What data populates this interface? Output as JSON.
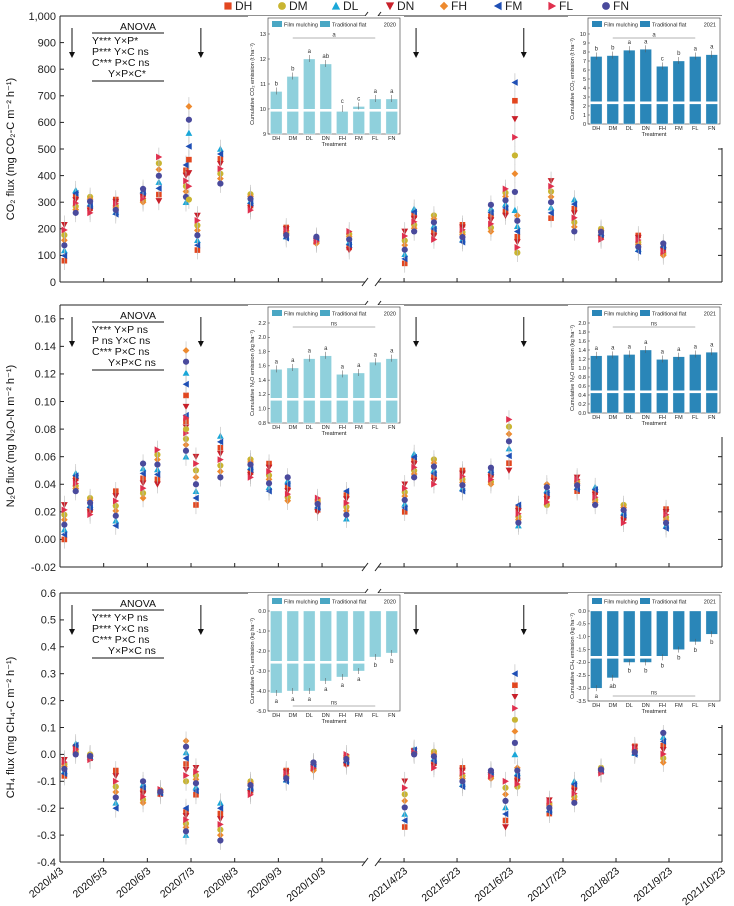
{
  "legend": [
    {
      "label": "DH",
      "color": "#e2461f",
      "marker": "square"
    },
    {
      "label": "DM",
      "color": "#c9b531",
      "marker": "circle"
    },
    {
      "label": "DL",
      "color": "#1aa7d8",
      "marker": "tri-up"
    },
    {
      "label": "DN",
      "color": "#c8202a",
      "marker": "tri-down"
    },
    {
      "label": "FH",
      "color": "#ee8a2e",
      "marker": "diamond"
    },
    {
      "label": "FM",
      "color": "#1f4fb5",
      "marker": "tri-left"
    },
    {
      "label": "FL",
      "color": "#e0304e",
      "marker": "tri-right"
    },
    {
      "label": "FN",
      "color": "#4a4a9c",
      "marker": "hexagon"
    }
  ],
  "x_dates_2020": [
    "2020/4/3",
    "2020/5/3",
    "2020/6/3",
    "2020/7/3",
    "2020/8/3",
    "2020/9/3",
    "2020/10/3"
  ],
  "x_dates_2021": [
    "2021/4/23",
    "2021/5/23",
    "2021/6/23",
    "2021/7/23",
    "2021/8/23",
    "2021/9/23",
    "2021/10/23"
  ],
  "chart_data": [
    {
      "type": "scatter",
      "panel": "CO2",
      "ylabel": "CO₂ flux (mg CO₂-C m⁻² h⁻¹)",
      "ylim": [
        0,
        1000
      ],
      "yticks": [
        "0",
        "100",
        "200",
        "300",
        "400",
        "500",
        "600",
        "700",
        "800",
        "900",
        "1,000"
      ],
      "yvals": [
        0,
        100,
        200,
        300,
        400,
        500,
        600,
        700,
        800,
        900,
        1000
      ],
      "fertilization_arrows": [
        {
          "year": 2020,
          "day": 0
        },
        {
          "year": 2020,
          "day": 90
        },
        {
          "year": 2021,
          "day": 0
        },
        {
          "year": 2021,
          "day": 62
        }
      ],
      "anova": [
        "ANOVA",
        "Y*** Y×P*",
        "P*** Y×C ns",
        "C*** P×C ns",
        "Y×P×C*"
      ],
      "points_2020": [
        {
          "day": 5,
          "min": 80,
          "max": 215
        },
        {
          "day": 10,
          "min": 260,
          "max": 345
        },
        {
          "day": 22,
          "min": 260,
          "max": 320
        },
        {
          "day": 37,
          "min": 255,
          "max": 310
        },
        {
          "day": 58,
          "min": 300,
          "max": 350
        },
        {
          "day": 71,
          "min": 305,
          "max": 470
        },
        {
          "day": 87,
          "min": 300,
          "max": 440
        },
        {
          "day": 91,
          "min": 310,
          "max": 660
        },
        {
          "day": 94,
          "min": 120,
          "max": 250
        },
        {
          "day": 112,
          "min": 370,
          "max": 500
        },
        {
          "day": 135,
          "min": 270,
          "max": 330
        },
        {
          "day": 157,
          "min": 165,
          "max": 205
        },
        {
          "day": 180,
          "min": 145,
          "max": 170
        },
        {
          "day": 200,
          "min": 120,
          "max": 190
        }
      ],
      "points_2021": [
        {
          "day": 2,
          "min": 70,
          "max": 190
        },
        {
          "day": 5,
          "min": 190,
          "max": 275
        },
        {
          "day": 18,
          "min": 160,
          "max": 250
        },
        {
          "day": 32,
          "min": 150,
          "max": 215
        },
        {
          "day": 50,
          "min": 190,
          "max": 290
        },
        {
          "day": 60,
          "min": 250,
          "max": 350
        },
        {
          "day": 63,
          "min": 270,
          "max": 750
        },
        {
          "day": 66,
          "min": 110,
          "max": 250
        },
        {
          "day": 83,
          "min": 240,
          "max": 380
        },
        {
          "day": 98,
          "min": 190,
          "max": 310
        },
        {
          "day": 115,
          "min": 160,
          "max": 200
        },
        {
          "day": 134,
          "min": 115,
          "max": 175
        },
        {
          "day": 150,
          "min": 100,
          "max": 145
        }
      ],
      "insets": [
        {
          "year": "2020",
          "type": "bar",
          "style": "light",
          "ylabel": "Cumulative CO₂ emission (t ha⁻¹)",
          "xlabel": "Treatment",
          "legend": [
            "Film mulching",
            "Traditional flat"
          ],
          "categories": [
            "DH",
            "DM",
            "DL",
            "DN",
            "FH",
            "FM",
            "FL",
            "FN"
          ],
          "values": [
            10.7,
            11.3,
            12.0,
            11.8,
            10.0,
            10.1,
            10.4,
            10.4
          ],
          "ylim": [
            9,
            13
          ],
          "yticks": [
            "9",
            "10",
            "11",
            "12",
            "13"
          ],
          "letters": [
            "b",
            "b",
            "a",
            "ab",
            "c",
            "c",
            "a",
            "a"
          ],
          "group_sig": "a"
        },
        {
          "year": "2021",
          "type": "bar",
          "style": "dark",
          "ylabel": "Cumulative CO₂ emission (t ha⁻¹)",
          "xlabel": "Treatment",
          "legend": [
            "Film mulching",
            "Traditional flat"
          ],
          "categories": [
            "DH",
            "DM",
            "DL",
            "DN",
            "FH",
            "FM",
            "FL",
            "FN"
          ],
          "values": [
            7.5,
            7.6,
            8.2,
            8.3,
            6.4,
            7.0,
            7.5,
            7.7
          ],
          "ylim": [
            0,
            10
          ],
          "yticks": [
            "0",
            "1",
            "2",
            "3",
            "4",
            "5",
            "6",
            "7",
            "8",
            "9",
            "10"
          ],
          "letters": [
            "b",
            "b",
            "a",
            "a",
            "c",
            "b",
            "a",
            "a"
          ],
          "group_sig": "a"
        }
      ]
    },
    {
      "type": "scatter",
      "panel": "N2O",
      "ylabel": "N₂O flux (mg N₂O-N m⁻² h⁻¹)",
      "ylim": [
        -0.02,
        0.17
      ],
      "yticks": [
        "-0.02",
        "0.00",
        "0.02",
        "0.04",
        "0.06",
        "0.08",
        "0.10",
        "0.12",
        "0.14",
        "0.16"
      ],
      "yvals": [
        -0.02,
        0,
        0.02,
        0.04,
        0.06,
        0.08,
        0.1,
        0.12,
        0.14,
        0.16
      ],
      "fertilization_arrows": [
        {
          "year": 2020,
          "day": 0
        },
        {
          "year": 2020,
          "day": 90
        },
        {
          "year": 2021,
          "day": 0
        },
        {
          "year": 2021,
          "day": 62
        }
      ],
      "anova": [
        "ANOVA",
        "Y*** Y×P ns",
        "P ns Y×C ns",
        "C*** P×C ns",
        "Y×P×C ns"
      ],
      "points_2020": [
        {
          "day": 5,
          "min": 0.0,
          "max": 0.025
        },
        {
          "day": 10,
          "min": 0.035,
          "max": 0.048
        },
        {
          "day": 22,
          "min": 0.018,
          "max": 0.03
        },
        {
          "day": 37,
          "min": 0.01,
          "max": 0.035
        },
        {
          "day": 58,
          "min": 0.03,
          "max": 0.055
        },
        {
          "day": 70,
          "min": 0.04,
          "max": 0.065
        },
        {
          "day": 87,
          "min": 0.06,
          "max": 0.09
        },
        {
          "day": 89,
          "min": 0.08,
          "max": 0.137
        },
        {
          "day": 93,
          "min": 0.025,
          "max": 0.06
        },
        {
          "day": 112,
          "min": 0.045,
          "max": 0.075
        },
        {
          "day": 135,
          "min": 0.045,
          "max": 0.058
        },
        {
          "day": 145,
          "min": 0.035,
          "max": 0.055
        },
        {
          "day": 160,
          "min": 0.028,
          "max": 0.045
        },
        {
          "day": 178,
          "min": 0.02,
          "max": 0.03
        },
        {
          "day": 200,
          "min": 0.015,
          "max": 0.035
        }
      ],
      "points_2021": [
        {
          "day": 2,
          "min": 0.02,
          "max": 0.04
        },
        {
          "day": 5,
          "min": 0.045,
          "max": 0.062
        },
        {
          "day": 18,
          "min": 0.04,
          "max": 0.058
        },
        {
          "day": 32,
          "min": 0.035,
          "max": 0.05
        },
        {
          "day": 50,
          "min": 0.04,
          "max": 0.052
        },
        {
          "day": 62,
          "min": 0.05,
          "max": 0.087
        },
        {
          "day": 65,
          "min": 0.01,
          "max": 0.025
        },
        {
          "day": 83,
          "min": 0.025,
          "max": 0.04
        },
        {
          "day": 98,
          "min": 0.035,
          "max": 0.045
        },
        {
          "day": 110,
          "min": 0.025,
          "max": 0.038
        },
        {
          "day": 128,
          "min": 0.012,
          "max": 0.025
        },
        {
          "day": 150,
          "min": 0.008,
          "max": 0.022
        }
      ],
      "insets": [
        {
          "year": "2020",
          "type": "bar",
          "style": "light",
          "ylabel": "Cumulative N₂O emission (kg ha⁻¹)",
          "xlabel": "Treatment",
          "legend": [
            "Film mulching",
            "Traditional flat"
          ],
          "categories": [
            "DH",
            "DM",
            "DL",
            "DN",
            "FH",
            "FM",
            "FL",
            "FN"
          ],
          "values": [
            1.55,
            1.57,
            1.7,
            1.74,
            1.48,
            1.5,
            1.65,
            1.7
          ],
          "ylim": [
            0.8,
            2.2
          ],
          "yticks": [
            "0.8",
            "1.0",
            "1.2",
            "1.4",
            "1.6",
            "1.8",
            "2.0",
            "2.2"
          ],
          "letters": [
            "a",
            "a",
            "a",
            "a",
            "a",
            "a",
            "a",
            "a"
          ],
          "group_sig": "ns"
        },
        {
          "year": "2021",
          "type": "bar",
          "style": "dark",
          "ylabel": "Cumulative N₂O emission (kg ha⁻¹)",
          "xlabel": "Treatment",
          "legend": [
            "Film mulching",
            "Traditional flat"
          ],
          "categories": [
            "DH",
            "DM",
            "DL",
            "DN",
            "FH",
            "FM",
            "FL",
            "FN"
          ],
          "values": [
            1.27,
            1.28,
            1.3,
            1.4,
            1.19,
            1.25,
            1.3,
            1.35
          ],
          "ylim": [
            0,
            2.0
          ],
          "yticks": [
            "0.0",
            "0.2",
            "0.4",
            "0.6",
            "0.8",
            "1.0",
            "1.2",
            "1.4",
            "1.6",
            "1.8",
            "2.0"
          ],
          "letters": [
            "a",
            "a",
            "a",
            "a",
            "a",
            "a",
            "a",
            "a"
          ],
          "group_sig": "ns"
        }
      ]
    },
    {
      "type": "scatter",
      "panel": "CH4",
      "ylabel": "CH₄ flux (mg CH₄-C m⁻² h⁻¹)",
      "ylim": [
        -0.4,
        0.6
      ],
      "yticks": [
        "-0.4",
        "-0.3",
        "-0.2",
        "-0.1",
        "0.0",
        "0.1",
        "0.2",
        "0.3",
        "0.4",
        "0.5",
        "0.6"
      ],
      "yvals": [
        -0.4,
        -0.3,
        -0.2,
        -0.1,
        0,
        0.1,
        0.2,
        0.3,
        0.4,
        0.5,
        0.6
      ],
      "fertilization_arrows": [
        {
          "year": 2020,
          "day": 0
        },
        {
          "year": 2020,
          "day": 90
        },
        {
          "year": 2021,
          "day": 0
        },
        {
          "year": 2021,
          "day": 62
        }
      ],
      "anova": [
        "ANOVA",
        "Y*** Y×P ns",
        "P*** Y×C ns",
        "C*** P×C ns",
        "Y×P×C ns"
      ],
      "points_2020": [
        {
          "day": 5,
          "min": -0.08,
          "max": -0.02
        },
        {
          "day": 10,
          "min": 0.0,
          "max": 0.04
        },
        {
          "day": 22,
          "min": -0.02,
          "max": 0.0
        },
        {
          "day": 37,
          "min": -0.2,
          "max": -0.06
        },
        {
          "day": 58,
          "min": -0.18,
          "max": -0.1
        },
        {
          "day": 72,
          "min": -0.15,
          "max": -0.13
        },
        {
          "day": 87,
          "min": -0.3,
          "max": -0.2
        },
        {
          "day": 89,
          "min": -0.1,
          "max": 0.05
        },
        {
          "day": 93,
          "min": -0.15,
          "max": -0.05
        },
        {
          "day": 112,
          "min": -0.32,
          "max": -0.18
        },
        {
          "day": 135,
          "min": -0.15,
          "max": -0.1
        },
        {
          "day": 157,
          "min": -0.1,
          "max": -0.06
        },
        {
          "day": 178,
          "min": -0.06,
          "max": -0.03
        },
        {
          "day": 198,
          "min": -0.04,
          "max": 0.0
        }
      ],
      "points_2021": [
        {
          "day": 2,
          "min": -0.27,
          "max": -0.1
        },
        {
          "day": 5,
          "min": 0.0,
          "max": 0.02
        },
        {
          "day": 18,
          "min": -0.05,
          "max": 0.01
        },
        {
          "day": 32,
          "min": -0.12,
          "max": -0.05
        },
        {
          "day": 50,
          "min": -0.09,
          "max": -0.06
        },
        {
          "day": 60,
          "min": -0.27,
          "max": -0.1
        },
        {
          "day": 63,
          "min": 0.0,
          "max": 0.3
        },
        {
          "day": 66,
          "min": -0.12,
          "max": -0.05
        },
        {
          "day": 82,
          "min": -0.22,
          "max": -0.17
        },
        {
          "day": 98,
          "min": -0.18,
          "max": -0.1
        },
        {
          "day": 115,
          "min": -0.07,
          "max": -0.05
        },
        {
          "day": 132,
          "min": 0.0,
          "max": 0.03
        },
        {
          "day": 150,
          "min": -0.03,
          "max": 0.08
        }
      ],
      "insets": [
        {
          "year": "2020",
          "type": "bar",
          "style": "light",
          "ylabel": "Cumulative CH₄ emission (kg ha⁻¹)",
          "xlabel": "Treatment",
          "legend": [
            "Film mulching",
            "Traditional flat"
          ],
          "categories": [
            "DH",
            "DM",
            "DL",
            "DN",
            "FH",
            "FM",
            "FL",
            "FN"
          ],
          "values": [
            -4.1,
            -4.0,
            -4.0,
            -3.5,
            -3.3,
            -3.0,
            -2.3,
            -2.1
          ],
          "ylim": [
            -5.0,
            0.0
          ],
          "yticks": [
            "-5.0",
            "-4.0",
            "-3.0",
            "-2.0",
            "-1.0",
            "0.0"
          ],
          "letters": [
            "a",
            "a",
            "a",
            "a",
            "a",
            "a",
            "b",
            "b"
          ],
          "group_sig": "ns"
        },
        {
          "year": "2021",
          "type": "bar",
          "style": "dark",
          "ylabel": "Cumulative CH₄ emission (kg ha⁻¹)",
          "xlabel": "Treatment",
          "legend": [
            "Film mulching",
            "Traditional flat"
          ],
          "categories": [
            "DH",
            "DM",
            "DL",
            "DN",
            "FH",
            "FM",
            "FL",
            "FN"
          ],
          "values": [
            -3.0,
            -2.6,
            -2.0,
            -2.0,
            -1.8,
            -1.5,
            -1.2,
            -0.9
          ],
          "ylim": [
            -3.5,
            0.0
          ],
          "yticks": [
            "-3.5",
            "-3.0",
            "-2.5",
            "-2.0",
            "-1.5",
            "-1.0",
            "-0.5",
            "0.0"
          ],
          "letters": [
            "a",
            "ab",
            "b",
            "b",
            "b",
            "b",
            "b",
            "b"
          ],
          "group_sig": "ns"
        }
      ]
    }
  ]
}
